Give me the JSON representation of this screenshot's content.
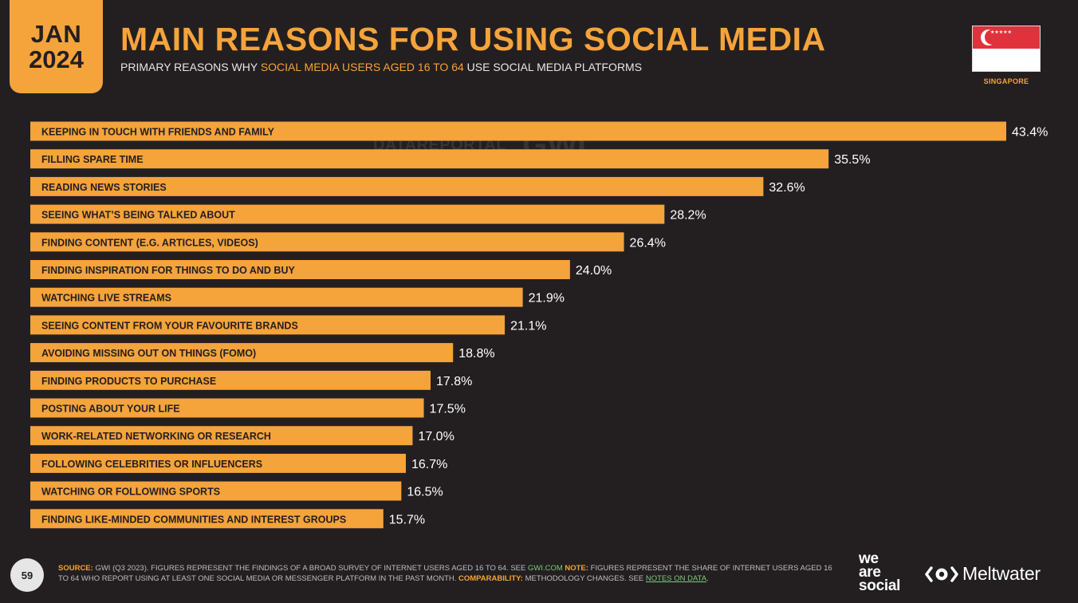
{
  "badge": {
    "month": "JAN",
    "year": "2024"
  },
  "header": {
    "title": "MAIN REASONS FOR USING SOCIAL MEDIA",
    "subtitle_pre": "PRIMARY REASONS WHY ",
    "subtitle_highlight": "SOCIAL MEDIA USERS AGED 16 TO 64",
    "subtitle_post": " USE SOCIAL MEDIA PLATFORMS"
  },
  "flag": {
    "country": "SINGAPORE",
    "stars": "★★★★★"
  },
  "watermark": {
    "datareportal": "DATAREPORTAL",
    "gwi": "GWI."
  },
  "colors": {
    "accent": "#f5a33b",
    "background": "#231f20",
    "bar": "#f5a33b",
    "bar_label": "#231f20"
  },
  "chart_data": {
    "type": "bar",
    "orientation": "horizontal",
    "categories": [
      "KEEPING IN TOUCH WITH FRIENDS AND FAMILY",
      "FILLING SPARE TIME",
      "READING NEWS STORIES",
      "SEEING WHAT’S BEING TALKED ABOUT",
      "FINDING CONTENT (E.G. ARTICLES, VIDEOS)",
      "FINDING INSPIRATION FOR THINGS TO DO AND BUY",
      "WATCHING LIVE STREAMS",
      "SEEING CONTENT FROM YOUR FAVOURITE BRANDS",
      "AVOIDING MISSING OUT ON THINGS (FOMO)",
      "FINDING PRODUCTS TO PURCHASE",
      "POSTING ABOUT YOUR LIFE",
      "WORK-RELATED NETWORKING OR RESEARCH",
      "FOLLOWING CELEBRITIES OR INFLUENCERS",
      "WATCHING OR FOLLOWING SPORTS",
      "FINDING LIKE-MINDED COMMUNITIES AND INTEREST GROUPS"
    ],
    "values": [
      43.4,
      35.5,
      32.6,
      28.2,
      26.4,
      24.0,
      21.9,
      21.1,
      18.8,
      17.8,
      17.5,
      17.0,
      16.7,
      16.5,
      15.7
    ],
    "value_labels": [
      "43.4%",
      "35.5%",
      "32.6%",
      "28.2%",
      "26.4%",
      "24.0%",
      "21.9%",
      "21.1%",
      "18.8%",
      "17.8%",
      "17.5%",
      "17.0%",
      "16.7%",
      "16.5%",
      "15.7%"
    ],
    "unit": "%",
    "xlim": [
      0,
      43.4
    ],
    "grid": false,
    "legend": "none"
  },
  "footer": {
    "page_number": "59",
    "source_label": "SOURCE:",
    "source_text": " GWI (Q3 2023). FIGURES REPRESENT THE FINDINGS OF A BROAD SURVEY OF INTERNET USERS AGED 16 TO 64. SEE ",
    "source_link": "GWI.COM",
    "note_label": " NOTE:",
    "note_text": " FIGURES REPRESENT THE SHARE OF INTERNET USERS AGED 16 TO 64 WHO REPORT USING AT LEAST ONE SOCIAL MEDIA OR MESSENGER PLATFORM IN THE PAST MONTH. ",
    "comparability_label": "COMPARABILITY:",
    "comparability_text": " METHODOLOGY CHANGES. SEE ",
    "notes_link": "NOTES ON DATA",
    "trailing": "."
  },
  "logos": {
    "was_line1": "we",
    "was_line2": "are",
    "was_line3": "social",
    "meltwater": "Meltwater"
  }
}
